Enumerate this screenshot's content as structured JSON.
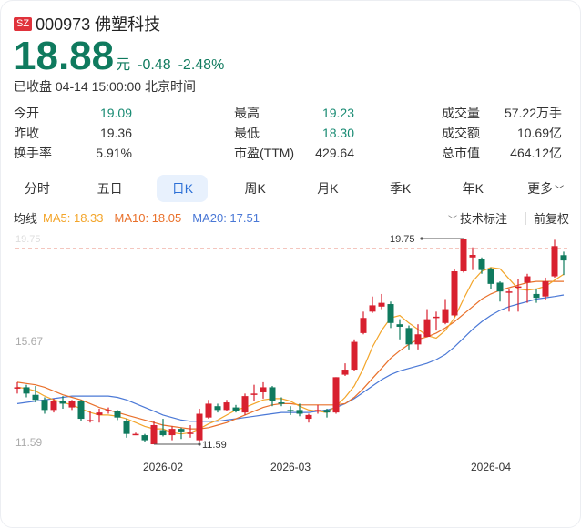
{
  "header": {
    "market_badge": "SZ",
    "code": "000973",
    "name": "佛塑科技",
    "title": "000973 佛塑科技",
    "price": "18.88",
    "unit": "元",
    "change": "-0.48",
    "change_pct": "-2.48%",
    "status": "已收盘 04-14 15:00:00 北京时间"
  },
  "stats": [
    {
      "label": "今开",
      "value": "19.09"
    },
    {
      "label": "最高",
      "value": "19.23"
    },
    {
      "label": "成交量",
      "value": "57.22万手"
    },
    {
      "label": "昨收",
      "value": "19.36"
    },
    {
      "label": "最低",
      "value": "18.30"
    },
    {
      "label": "成交额",
      "value": "10.69亿"
    },
    {
      "label": "换手率",
      "value": "5.91%"
    },
    {
      "label": "市盈(TTM)",
      "value": "429.64"
    },
    {
      "label": "总市值",
      "value": "464.12亿"
    }
  ],
  "tabs": [
    {
      "label": "分时"
    },
    {
      "label": "五日"
    },
    {
      "label": "日K",
      "active": true
    },
    {
      "label": "周K"
    },
    {
      "label": "月K"
    },
    {
      "label": "季K"
    },
    {
      "label": "年K"
    },
    {
      "label": "更多"
    }
  ],
  "ma_bar": {
    "label": "均线",
    "ma5": "MA5: 18.33",
    "ma10": "MA10: 18.05",
    "ma20": "MA20: 17.51",
    "tech": "技术标注",
    "adjust": "前复权"
  },
  "colors": {
    "up": "#d8202f",
    "down": "#0f7a5e",
    "ma5": "#f3a52a",
    "ma10": "#e9702a",
    "ma20": "#4a78d6",
    "price_green": "#0f7a5e",
    "active_tab_bg": "#e8f1fd",
    "active_tab_text": "#2b6fd6"
  },
  "chart_data": {
    "type": "candlestick",
    "title": "000973 佛塑科技 日K",
    "y_ticks": [
      "19.75",
      "15.67",
      "11.59"
    ],
    "ylim": [
      11.59,
      19.75
    ],
    "x_ticks": [
      "2026-02",
      "2026-03",
      "2026-04"
    ],
    "prev_close_line": 19.36,
    "annotations": [
      {
        "label": "19.75",
        "type": "max"
      },
      {
        "label": "11.59",
        "type": "min"
      }
    ],
    "legend": [
      "MA5: 18.33",
      "MA10: 18.05",
      "MA20: 17.51"
    ],
    "candles": [
      {
        "o": 13.85,
        "c": 13.85,
        "h": 14.05,
        "l": 13.6
      },
      {
        "o": 13.85,
        "c": 13.6,
        "h": 13.95,
        "l": 13.45
      },
      {
        "o": 13.55,
        "c": 13.35,
        "h": 13.9,
        "l": 13.25
      },
      {
        "o": 13.35,
        "c": 12.95,
        "h": 13.45,
        "l": 12.8
      },
      {
        "o": 12.95,
        "c": 13.3,
        "h": 13.4,
        "l": 12.85
      },
      {
        "o": 13.3,
        "c": 13.2,
        "h": 13.5,
        "l": 13.0
      },
      {
        "o": 13.05,
        "c": 13.3,
        "h": 13.35,
        "l": 12.95
      },
      {
        "o": 13.3,
        "c": 12.6,
        "h": 13.35,
        "l": 12.5
      },
      {
        "o": 12.55,
        "c": 12.55,
        "h": 12.9,
        "l": 12.45
      },
      {
        "o": 12.75,
        "c": 12.85,
        "h": 13.0,
        "l": 12.45
      },
      {
        "o": 12.9,
        "c": 12.95,
        "h": 13.05,
        "l": 12.8
      },
      {
        "o": 12.9,
        "c": 12.65,
        "h": 12.95,
        "l": 12.55
      },
      {
        "o": 12.5,
        "c": 12.0,
        "h": 12.6,
        "l": 11.85
      },
      {
        "o": 12.0,
        "c": 12.0,
        "h": 12.05,
        "l": 11.95
      },
      {
        "o": 11.95,
        "c": 11.75,
        "h": 12.0,
        "l": 11.7
      },
      {
        "o": 11.59,
        "c": 12.35,
        "h": 12.5,
        "l": 11.59
      },
      {
        "o": 12.15,
        "c": 11.95,
        "h": 12.6,
        "l": 11.9
      },
      {
        "o": 11.95,
        "c": 12.2,
        "h": 12.3,
        "l": 11.75
      },
      {
        "o": 12.2,
        "c": 12.1,
        "h": 12.25,
        "l": 11.8
      },
      {
        "o": 12.05,
        "c": 12.05,
        "h": 12.35,
        "l": 11.85
      },
      {
        "o": 11.75,
        "c": 12.8,
        "h": 13.0,
        "l": 11.7
      },
      {
        "o": 12.65,
        "c": 13.2,
        "h": 13.35,
        "l": 12.6
      },
      {
        "o": 13.1,
        "c": 12.95,
        "h": 13.2,
        "l": 12.85
      },
      {
        "o": 12.95,
        "c": 13.25,
        "h": 13.35,
        "l": 12.9
      },
      {
        "o": 13.05,
        "c": 12.9,
        "h": 13.15,
        "l": 12.85
      },
      {
        "o": 12.85,
        "c": 13.5,
        "h": 13.6,
        "l": 12.75
      },
      {
        "o": 13.6,
        "c": 13.6,
        "h": 13.95,
        "l": 13.3
      },
      {
        "o": 13.65,
        "c": 13.85,
        "h": 14.05,
        "l": 13.4
      },
      {
        "o": 13.85,
        "c": 13.3,
        "h": 13.9,
        "l": 13.1
      },
      {
        "o": 13.25,
        "c": 13.2,
        "h": 13.45,
        "l": 13.1
      },
      {
        "o": 12.95,
        "c": 12.9,
        "h": 13.1,
        "l": 12.75
      },
      {
        "o": 12.95,
        "c": 12.8,
        "h": 13.2,
        "l": 12.7
      },
      {
        "o": 12.6,
        "c": 12.75,
        "h": 12.8,
        "l": 12.45
      },
      {
        "o": 12.95,
        "c": 12.95,
        "h": 13.15,
        "l": 12.8
      },
      {
        "o": 12.95,
        "c": 12.85,
        "h": 13.0,
        "l": 12.65
      },
      {
        "o": 12.85,
        "c": 14.25,
        "h": 14.25,
        "l": 12.8
      },
      {
        "o": 14.35,
        "c": 14.55,
        "h": 14.8,
        "l": 14.3
      },
      {
        "o": 14.55,
        "c": 15.65,
        "h": 15.75,
        "l": 14.5
      },
      {
        "o": 16.0,
        "c": 16.6,
        "h": 16.85,
        "l": 15.95
      },
      {
        "o": 16.85,
        "c": 17.1,
        "h": 17.45,
        "l": 16.8
      },
      {
        "o": 17.05,
        "c": 17.2,
        "h": 17.55,
        "l": 16.95
      },
      {
        "o": 17.15,
        "c": 16.4,
        "h": 17.25,
        "l": 16.2
      },
      {
        "o": 16.35,
        "c": 16.25,
        "h": 16.55,
        "l": 15.75
      },
      {
        "o": 16.2,
        "c": 15.55,
        "h": 16.3,
        "l": 15.35
      },
      {
        "o": 15.55,
        "c": 15.95,
        "h": 16.35,
        "l": 15.35
      },
      {
        "o": 15.85,
        "c": 16.55,
        "h": 16.95,
        "l": 15.85
      },
      {
        "o": 16.65,
        "c": 16.65,
        "h": 16.85,
        "l": 16.1
      },
      {
        "o": 16.4,
        "c": 16.95,
        "h": 17.35,
        "l": 16.35
      },
      {
        "o": 16.7,
        "c": 18.45,
        "h": 18.55,
        "l": 16.65
      },
      {
        "o": 18.45,
        "c": 19.75,
        "h": 19.75,
        "l": 18.4
      },
      {
        "o": 19.0,
        "c": 19.1,
        "h": 19.4,
        "l": 18.5
      },
      {
        "o": 18.95,
        "c": 18.5,
        "h": 19.0,
        "l": 18.35
      },
      {
        "o": 18.55,
        "c": 17.95,
        "h": 18.6,
        "l": 17.75
      },
      {
        "o": 18.0,
        "c": 17.65,
        "h": 18.05,
        "l": 17.25
      },
      {
        "o": 17.65,
        "c": 17.65,
        "h": 17.75,
        "l": 16.85
      },
      {
        "o": 17.85,
        "c": 17.85,
        "h": 18.15,
        "l": 16.85
      },
      {
        "o": 18.0,
        "c": 18.25,
        "h": 18.35,
        "l": 17.2
      },
      {
        "o": 17.55,
        "c": 17.4,
        "h": 17.75,
        "l": 17.2
      },
      {
        "o": 17.45,
        "c": 18.05,
        "h": 18.2,
        "l": 17.3
      },
      {
        "o": 18.25,
        "c": 19.45,
        "h": 19.7,
        "l": 18.2
      },
      {
        "o": 19.09,
        "c": 18.88,
        "h": 19.23,
        "l": 18.3
      }
    ],
    "ma5": [
      13.85,
      13.8,
      13.7,
      13.5,
      13.35,
      13.25,
      13.15,
      13.0,
      12.85,
      12.75,
      12.75,
      12.7,
      12.6,
      12.45,
      12.3,
      12.2,
      12.2,
      12.05,
      12.0,
      12.05,
      12.2,
      12.4,
      12.55,
      12.75,
      12.95,
      13.05,
      13.2,
      13.35,
      13.4,
      13.4,
      13.3,
      13.1,
      12.95,
      12.9,
      12.85,
      13.1,
      13.45,
      13.9,
      14.6,
      15.45,
      16.1,
      16.6,
      16.7,
      16.4,
      16.15,
      15.9,
      15.8,
      16.1,
      16.6,
      17.35,
      18.05,
      18.45,
      18.6,
      18.55,
      18.15,
      17.75,
      17.7,
      17.75,
      17.85,
      18.1,
      18.33
    ],
    "ma10": [
      14.05,
      14.0,
      13.95,
      13.85,
      13.7,
      13.55,
      13.45,
      13.35,
      13.2,
      13.05,
      12.95,
      12.85,
      12.75,
      12.65,
      12.55,
      12.45,
      12.35,
      12.3,
      12.25,
      12.2,
      12.2,
      12.25,
      12.35,
      12.45,
      12.6,
      12.75,
      12.9,
      13.05,
      13.15,
      13.2,
      13.2,
      13.15,
      13.15,
      13.15,
      13.15,
      13.15,
      13.2,
      13.45,
      13.8,
      14.2,
      14.6,
      15.0,
      15.3,
      15.55,
      15.75,
      15.85,
      16.0,
      16.2,
      16.45,
      16.75,
      17.05,
      17.35,
      17.55,
      17.7,
      17.8,
      17.9,
      18.0,
      18.05,
      18.05,
      18.05,
      18.05
    ],
    "ma20": [
      13.2,
      13.25,
      13.3,
      13.35,
      13.4,
      13.45,
      13.5,
      13.5,
      13.5,
      13.5,
      13.5,
      13.45,
      13.35,
      13.2,
      13.05,
      12.9,
      12.75,
      12.65,
      12.55,
      12.5,
      12.5,
      12.5,
      12.5,
      12.55,
      12.6,
      12.65,
      12.7,
      12.75,
      12.8,
      12.85,
      12.85,
      12.85,
      12.85,
      12.9,
      12.95,
      13.05,
      13.2,
      13.4,
      13.65,
      13.9,
      14.15,
      14.35,
      14.5,
      14.6,
      14.7,
      14.8,
      14.95,
      15.15,
      15.45,
      15.8,
      16.15,
      16.45,
      16.7,
      16.9,
      17.05,
      17.15,
      17.25,
      17.35,
      17.4,
      17.45,
      17.51
    ]
  }
}
